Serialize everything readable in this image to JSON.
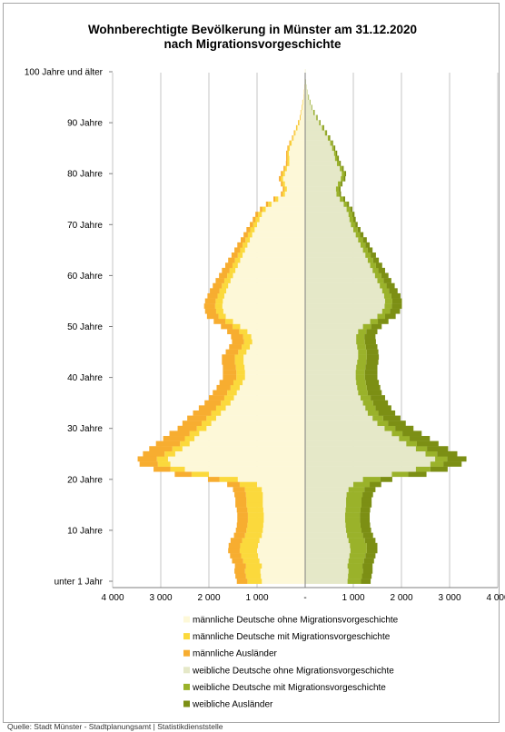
{
  "chart_data": {
    "type": "bar",
    "orientation": "horizontal",
    "layout": "population-pyramid",
    "title_line1": "Wohnberechtigte Bevölkerung in Münster am 31.12.2020",
    "title_line2": "nach Migrationsvorgeschichte",
    "xlim": [
      -4000,
      4000
    ],
    "x_ticks": [
      {
        "value": -4000,
        "label": "4 000"
      },
      {
        "value": -3000,
        "label": "3 000"
      },
      {
        "value": -2000,
        "label": "2 000"
      },
      {
        "value": -1000,
        "label": "1 000"
      },
      {
        "value": 0,
        "label": "-"
      },
      {
        "value": 1000,
        "label": "1 000"
      },
      {
        "value": 2000,
        "label": "2 000"
      },
      {
        "value": 3000,
        "label": "3 000"
      },
      {
        "value": 4000,
        "label": "4 000"
      }
    ],
    "y_ticks": [
      {
        "age": 0,
        "label": "unter 1 Jahr"
      },
      {
        "age": 10,
        "label": "10 Jahre"
      },
      {
        "age": 20,
        "label": "20 Jahre"
      },
      {
        "age": 30,
        "label": "30 Jahre"
      },
      {
        "age": 40,
        "label": "40 Jahre"
      },
      {
        "age": 50,
        "label": "50 Jahre"
      },
      {
        "age": 60,
        "label": "60 Jahre"
      },
      {
        "age": 70,
        "label": "70 Jahre"
      },
      {
        "age": 80,
        "label": "80 Jahre"
      },
      {
        "age": 90,
        "label": "90 Jahre"
      },
      {
        "age": 100,
        "label": "100 Jahre und älter"
      }
    ],
    "grid": true,
    "legend_position": "bottom",
    "series": [
      {
        "name": "männliche Deutsche ohne Migrationsvorgeschichte",
        "side": "male",
        "color": "#fdf8d8"
      },
      {
        "name": "männliche Deutsche mit Migrationsvorgeschichte",
        "side": "male",
        "color": "#fbd93c"
      },
      {
        "name": "männliche Ausländer",
        "side": "male",
        "color": "#f7ad30"
      },
      {
        "name": "weibliche Deutsche ohne Migrationsvorgeschichte",
        "side": "female",
        "color": "#e5e8c8"
      },
      {
        "name": "weibliche Deutsche mit Migrationsvorgeschichte",
        "side": "female",
        "color": "#9ab22a"
      },
      {
        "name": "weibliche Ausländer",
        "side": "female",
        "color": "#7c8f14"
      }
    ],
    "ages": [
      0,
      1,
      2,
      3,
      4,
      5,
      6,
      7,
      8,
      9,
      10,
      11,
      12,
      13,
      14,
      15,
      16,
      17,
      18,
      19,
      20,
      21,
      22,
      23,
      24,
      25,
      26,
      27,
      28,
      29,
      30,
      31,
      32,
      33,
      34,
      35,
      36,
      37,
      38,
      39,
      40,
      41,
      42,
      43,
      44,
      45,
      46,
      47,
      48,
      49,
      50,
      51,
      52,
      53,
      54,
      55,
      56,
      57,
      58,
      59,
      60,
      61,
      62,
      63,
      64,
      65,
      66,
      67,
      68,
      69,
      70,
      71,
      72,
      73,
      74,
      75,
      76,
      77,
      78,
      79,
      80,
      81,
      82,
      83,
      84,
      85,
      86,
      87,
      88,
      89,
      90,
      91,
      92,
      93,
      94,
      95,
      96,
      97,
      98,
      99,
      100
    ],
    "male": {
      "ohne": [
        900,
        920,
        930,
        900,
        950,
        980,
        1000,
        980,
        950,
        900,
        880,
        870,
        860,
        860,
        870,
        880,
        880,
        880,
        900,
        1000,
        1400,
        2000,
        2500,
        2800,
        2850,
        2700,
        2550,
        2400,
        2300,
        2200,
        2050,
        1950,
        1850,
        1750,
        1650,
        1550,
        1480,
        1420,
        1360,
        1300,
        1250,
        1250,
        1260,
        1280,
        1280,
        1220,
        1150,
        1100,
        1120,
        1200,
        1350,
        1500,
        1650,
        1700,
        1720,
        1710,
        1680,
        1640,
        1600,
        1550,
        1500,
        1450,
        1400,
        1350,
        1300,
        1250,
        1200,
        1150,
        1100,
        1050,
        1000,
        950,
        900,
        820,
        700,
        560,
        420,
        380,
        420,
        460,
        420,
        380,
        330,
        330,
        340,
        320,
        280,
        240,
        200,
        160,
        120,
        95,
        80,
        60,
        45,
        30,
        20,
        12,
        8,
        5,
        3
      ],
      "mit": [
        300,
        310,
        320,
        330,
        340,
        350,
        360,
        370,
        360,
        350,
        340,
        330,
        330,
        330,
        330,
        340,
        340,
        350,
        350,
        360,
        380,
        360,
        300,
        260,
        230,
        220,
        210,
        200,
        200,
        200,
        200,
        200,
        200,
        200,
        200,
        200,
        200,
        200,
        190,
        190,
        180,
        180,
        180,
        180,
        180,
        170,
        170,
        170,
        170,
        170,
        160,
        160,
        150,
        150,
        150,
        150,
        140,
        140,
        130,
        130,
        120,
        120,
        110,
        110,
        100,
        100,
        100,
        90,
        90,
        90,
        80,
        80,
        80,
        70,
        70,
        60,
        50,
        50,
        50,
        50,
        50,
        40,
        40,
        40,
        30,
        30,
        30,
        20,
        20,
        20,
        20,
        10,
        10,
        10,
        10,
        5,
        5,
        3,
        2,
        1,
        1
      ],
      "aus": [
        220,
        220,
        220,
        230,
        230,
        230,
        240,
        240,
        240,
        230,
        220,
        220,
        220,
        220,
        220,
        230,
        230,
        240,
        250,
        260,
        240,
        350,
        350,
        380,
        400,
        450,
        480,
        500,
        450,
        420,
        400,
        400,
        400,
        380,
        360,
        340,
        320,
        300,
        290,
        290,
        280,
        280,
        270,
        270,
        270,
        260,
        260,
        250,
        250,
        250,
        240,
        240,
        240,
        230,
        230,
        220,
        210,
        200,
        190,
        180,
        170,
        160,
        150,
        140,
        130,
        120,
        110,
        100,
        90,
        80,
        70,
        60,
        55,
        50,
        45,
        40,
        35,
        35,
        35,
        35,
        35,
        30,
        30,
        25,
        25,
        20,
        20,
        15,
        15,
        10,
        10,
        8,
        6,
        4,
        3,
        2,
        1,
        1,
        0,
        0,
        0
      ]
    },
    "female": {
      "ohne": [
        880,
        890,
        900,
        880,
        900,
        920,
        940,
        930,
        900,
        870,
        850,
        840,
        830,
        830,
        840,
        850,
        850,
        860,
        900,
        1000,
        1200,
        1800,
        2300,
        2600,
        2700,
        2500,
        2300,
        2100,
        1950,
        1800,
        1650,
        1500,
        1400,
        1300,
        1250,
        1200,
        1150,
        1100,
        1080,
        1060,
        1050,
        1050,
        1060,
        1080,
        1100,
        1100,
        1080,
        1060,
        1060,
        1100,
        1200,
        1350,
        1500,
        1600,
        1650,
        1660,
        1640,
        1600,
        1550,
        1500,
        1450,
        1400,
        1350,
        1300,
        1250,
        1200,
        1150,
        1100,
        1050,
        1000,
        950,
        920,
        900,
        860,
        800,
        720,
        650,
        640,
        680,
        740,
        760,
        720,
        660,
        620,
        600,
        560,
        520,
        470,
        410,
        350,
        290,
        230,
        170,
        130,
        95,
        65,
        40,
        25,
        15,
        8,
        4
      ],
      "mit": [
        280,
        290,
        300,
        310,
        320,
        330,
        340,
        350,
        340,
        330,
        320,
        310,
        310,
        310,
        310,
        320,
        320,
        330,
        330,
        340,
        360,
        340,
        300,
        270,
        250,
        240,
        230,
        220,
        220,
        220,
        220,
        220,
        220,
        220,
        210,
        210,
        210,
        200,
        200,
        200,
        190,
        190,
        190,
        190,
        180,
        180,
        180,
        180,
        170,
        170,
        170,
        160,
        160,
        160,
        150,
        150,
        150,
        140,
        140,
        130,
        130,
        120,
        120,
        110,
        110,
        100,
        100,
        100,
        90,
        90,
        90,
        80,
        80,
        80,
        70,
        70,
        60,
        60,
        60,
        60,
        60,
        50,
        50,
        50,
        40,
        40,
        40,
        30,
        30,
        30,
        20,
        20,
        20,
        10,
        10,
        10,
        5,
        3,
        2,
        1,
        1
      ],
      "aus": [
        200,
        200,
        200,
        210,
        210,
        210,
        220,
        220,
        220,
        210,
        200,
        200,
        200,
        200,
        200,
        210,
        210,
        220,
        230,
        240,
        250,
        380,
        360,
        380,
        400,
        420,
        440,
        450,
        420,
        400,
        380,
        370,
        360,
        350,
        330,
        310,
        300,
        290,
        280,
        270,
        260,
        260,
        250,
        250,
        250,
        240,
        240,
        230,
        230,
        230,
        220,
        220,
        220,
        210,
        210,
        200,
        190,
        180,
        170,
        160,
        150,
        140,
        130,
        120,
        110,
        100,
        90,
        80,
        70,
        60,
        50,
        50,
        45,
        40,
        40,
        40,
        35,
        35,
        35,
        35,
        30,
        30,
        30,
        30,
        25,
        25,
        20,
        20,
        15,
        15,
        10,
        10,
        8,
        6,
        4,
        3,
        2,
        1,
        1,
        0,
        0
      ]
    }
  },
  "source_text": "Quelle: Stadt Münster - Stadtplanungsamt | Statistikdienststelle"
}
